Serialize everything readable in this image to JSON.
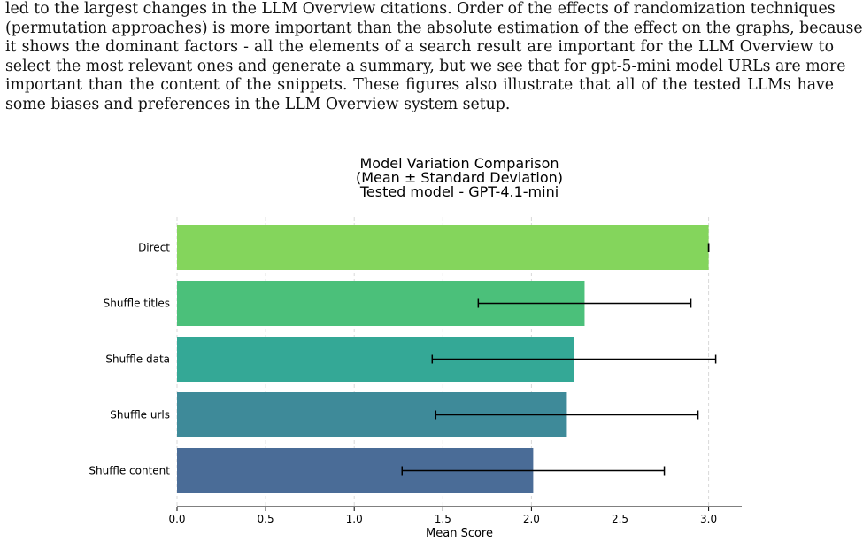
{
  "paragraph": {
    "lines": [
      "led to the largest changes in the LLM Overview citations. Order of the effects of randomization techniques",
      "(permutation approaches) is more important than the absolute estimation of the effect on the graphs, because",
      "it shows the dominant factors - all the elements of a search result are important for the LLM Overview to",
      "select the most relevant ones and generate a summary, but we see that for gpt-5-mini model URLs are more",
      "important than the content of the snippets. These figures also illustrate that all of the tested LLMs have",
      "some biases and preferences in the LLM Overview system setup."
    ]
  },
  "chart_data": {
    "type": "bar",
    "orientation": "horizontal",
    "title_lines": [
      "Model Variation Comparison",
      "(Mean ± Standard Deviation)",
      "Tested model - GPT-4.1-mini"
    ],
    "xlabel": "Mean Score",
    "ylabel": "",
    "xlim": [
      0,
      3.2
    ],
    "xticks": [
      0.0,
      0.5,
      1.0,
      1.5,
      2.0,
      2.5,
      3.0
    ],
    "xtick_labels": [
      "0.0",
      "0.5",
      "1.0",
      "1.5",
      "2.0",
      "2.5",
      "3.0"
    ],
    "grid": "vertical-dashed",
    "categories": [
      "Direct",
      "Shuffle titles",
      "Shuffle data",
      "Shuffle urls",
      "Shuffle content"
    ],
    "values": [
      3.0,
      2.3,
      2.24,
      2.2,
      2.01
    ],
    "std": [
      0.0,
      0.6,
      0.8,
      0.74,
      0.74
    ],
    "colors": [
      "#84d55c",
      "#4bc07a",
      "#34a896",
      "#3e8a99",
      "#4a6c97"
    ]
  }
}
